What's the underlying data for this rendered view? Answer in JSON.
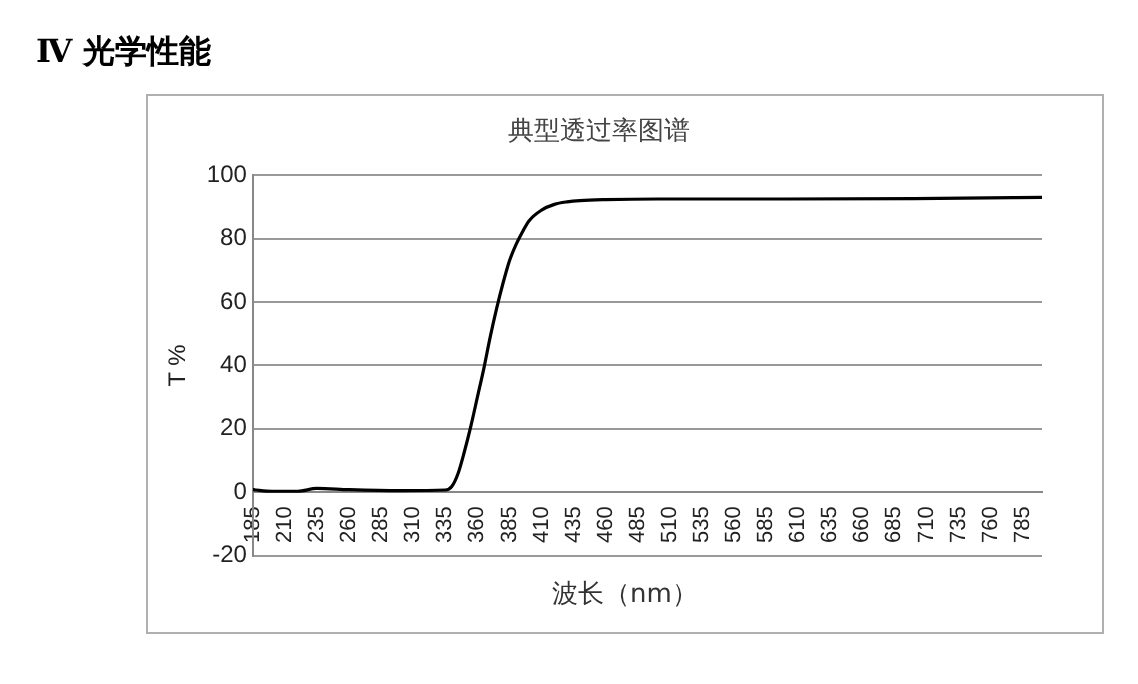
{
  "chart_data": {
    "type": "line",
    "title": "典型透过率图谱",
    "xlabel": "波长（nm）",
    "ylabel": "T %",
    "annotations": [
      "Ⅳ 光学性能"
    ],
    "x": [
      185,
      200,
      220,
      235,
      260,
      300,
      335,
      340,
      345,
      350,
      355,
      360,
      365,
      370,
      375,
      380,
      385,
      390,
      395,
      400,
      410,
      420,
      430,
      440,
      460,
      500,
      600,
      700,
      800
    ],
    "series": [
      {
        "color": "#000000",
        "values": [
          0.8,
          0.3,
          0.3,
          1.2,
          0.8,
          0.5,
          0.7,
          1.8,
          6,
          13,
          21,
          30,
          39,
          49,
          58,
          66,
          73,
          78,
          82,
          85.5,
          89,
          90.8,
          91.6,
          92,
          92.3,
          92.5,
          92.5,
          92.6,
          93
        ]
      }
    ],
    "xlim": [
      185,
      800
    ],
    "xticks": [
      185,
      210,
      235,
      260,
      285,
      310,
      335,
      360,
      385,
      410,
      435,
      460,
      485,
      510,
      535,
      560,
      585,
      610,
      635,
      660,
      685,
      710,
      735,
      760,
      785
    ],
    "ylim": [
      -20,
      100
    ],
    "yticks": [
      -20,
      0,
      20,
      40,
      60,
      80,
      100
    ],
    "grid": "y",
    "legend": false,
    "marker": "none",
    "line_style": "solid"
  }
}
